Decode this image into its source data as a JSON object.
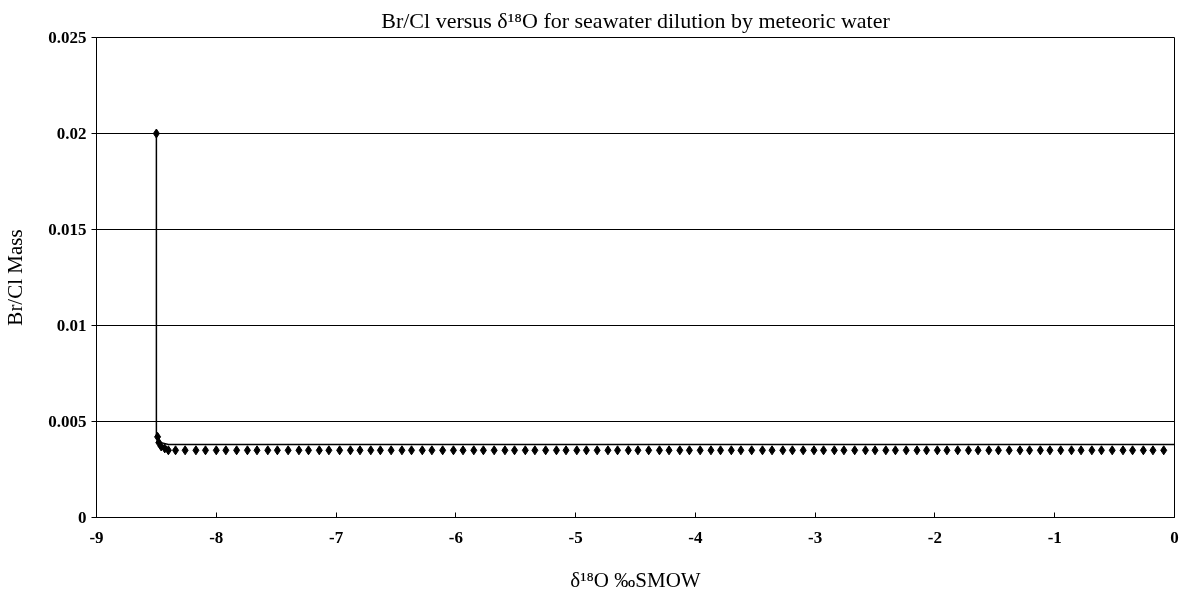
{
  "chart_data": {
    "type": "scatter",
    "title": "Br/Cl versus δ¹⁸O for seawater dilution by meteoric water",
    "xlabel": "δ¹⁸O ‰SMOW",
    "ylabel": "Br/Cl Mass",
    "xlim": [
      -9,
      0
    ],
    "xticks": [
      -9,
      -8,
      -7,
      -6,
      -5,
      -4,
      -3,
      -2,
      -1,
      0
    ],
    "ylim": [
      0,
      0.025
    ],
    "yticks": [
      0,
      0.005,
      0.01,
      0.015,
      0.02,
      0.025
    ],
    "grid": "y",
    "series": [
      {
        "type": "line",
        "color": "#000000",
        "marker": "none",
        "line_style": "solid",
        "x": [
          -8.5,
          -8.5,
          -8.49,
          -8.46,
          -8.4,
          0
        ],
        "values": [
          0.02,
          0.0042,
          0.004,
          0.0039,
          0.0038,
          0.0038
        ]
      },
      {
        "color": "#000000",
        "marker": "diamond",
        "x": [
          -8.5,
          -8.49,
          -8.48,
          -8.46,
          -8.43,
          -8.4,
          -8.34,
          -8.26,
          -8.17,
          -8.09,
          -8.0,
          -7.92,
          -7.83,
          -7.74,
          -7.66,
          -7.57,
          -7.49,
          -7.4,
          -7.31,
          -7.23,
          -7.14,
          -7.06,
          -6.97,
          -6.88,
          -6.8,
          -6.71,
          -6.63,
          -6.54,
          -6.45,
          -6.37,
          -6.28,
          -6.2,
          -6.11,
          -6.02,
          -5.94,
          -5.85,
          -5.77,
          -5.68,
          -5.59,
          -5.51,
          -5.42,
          -5.34,
          -5.25,
          -5.16,
          -5.08,
          -4.99,
          -4.91,
          -4.82,
          -4.73,
          -4.65,
          -4.56,
          -4.48,
          -4.39,
          -4.3,
          -4.22,
          -4.13,
          -4.05,
          -3.96,
          -3.87,
          -3.79,
          -3.7,
          -3.62,
          -3.53,
          -3.44,
          -3.36,
          -3.27,
          -3.19,
          -3.1,
          -3.01,
          -2.93,
          -2.84,
          -2.76,
          -2.67,
          -2.58,
          -2.5,
          -2.41,
          -2.33,
          -2.24,
          -2.15,
          -2.07,
          -1.98,
          -1.9,
          -1.81,
          -1.72,
          -1.64,
          -1.55,
          -1.47,
          -1.38,
          -1.29,
          -1.21,
          -1.12,
          -1.04,
          -0.95,
          -0.86,
          -0.78,
          -0.69,
          -0.61,
          -0.52,
          -0.43,
          -0.35,
          -0.26,
          -0.18,
          -0.09
        ],
        "values": [
          0.02,
          0.0042,
          0.0039,
          0.0037,
          0.0036,
          0.0035,
          0.0035,
          0.0035,
          0.0035,
          0.0035,
          0.0035,
          0.0035,
          0.0035,
          0.0035,
          0.0035,
          0.0035,
          0.0035,
          0.0035,
          0.0035,
          0.0035,
          0.0035,
          0.0035,
          0.0035,
          0.0035,
          0.0035,
          0.0035,
          0.0035,
          0.0035,
          0.0035,
          0.0035,
          0.0035,
          0.0035,
          0.0035,
          0.0035,
          0.0035,
          0.0035,
          0.0035,
          0.0035,
          0.0035,
          0.0035,
          0.0035,
          0.0035,
          0.0035,
          0.0035,
          0.0035,
          0.0035,
          0.0035,
          0.0035,
          0.0035,
          0.0035,
          0.0035,
          0.0035,
          0.0035,
          0.0035,
          0.0035,
          0.0035,
          0.0035,
          0.0035,
          0.0035,
          0.0035,
          0.0035,
          0.0035,
          0.0035,
          0.0035,
          0.0035,
          0.0035,
          0.0035,
          0.0035,
          0.0035,
          0.0035,
          0.0035,
          0.0035,
          0.0035,
          0.0035,
          0.0035,
          0.0035,
          0.0035,
          0.0035,
          0.0035,
          0.0035,
          0.0035,
          0.0035,
          0.0035,
          0.0035,
          0.0035,
          0.0035,
          0.0035,
          0.0035,
          0.0035,
          0.0035,
          0.0035,
          0.0035,
          0.0035,
          0.0035,
          0.0035,
          0.0035,
          0.0035,
          0.0035,
          0.0035,
          0.0035,
          0.0035,
          0.0035,
          0.0035
        ]
      }
    ]
  }
}
